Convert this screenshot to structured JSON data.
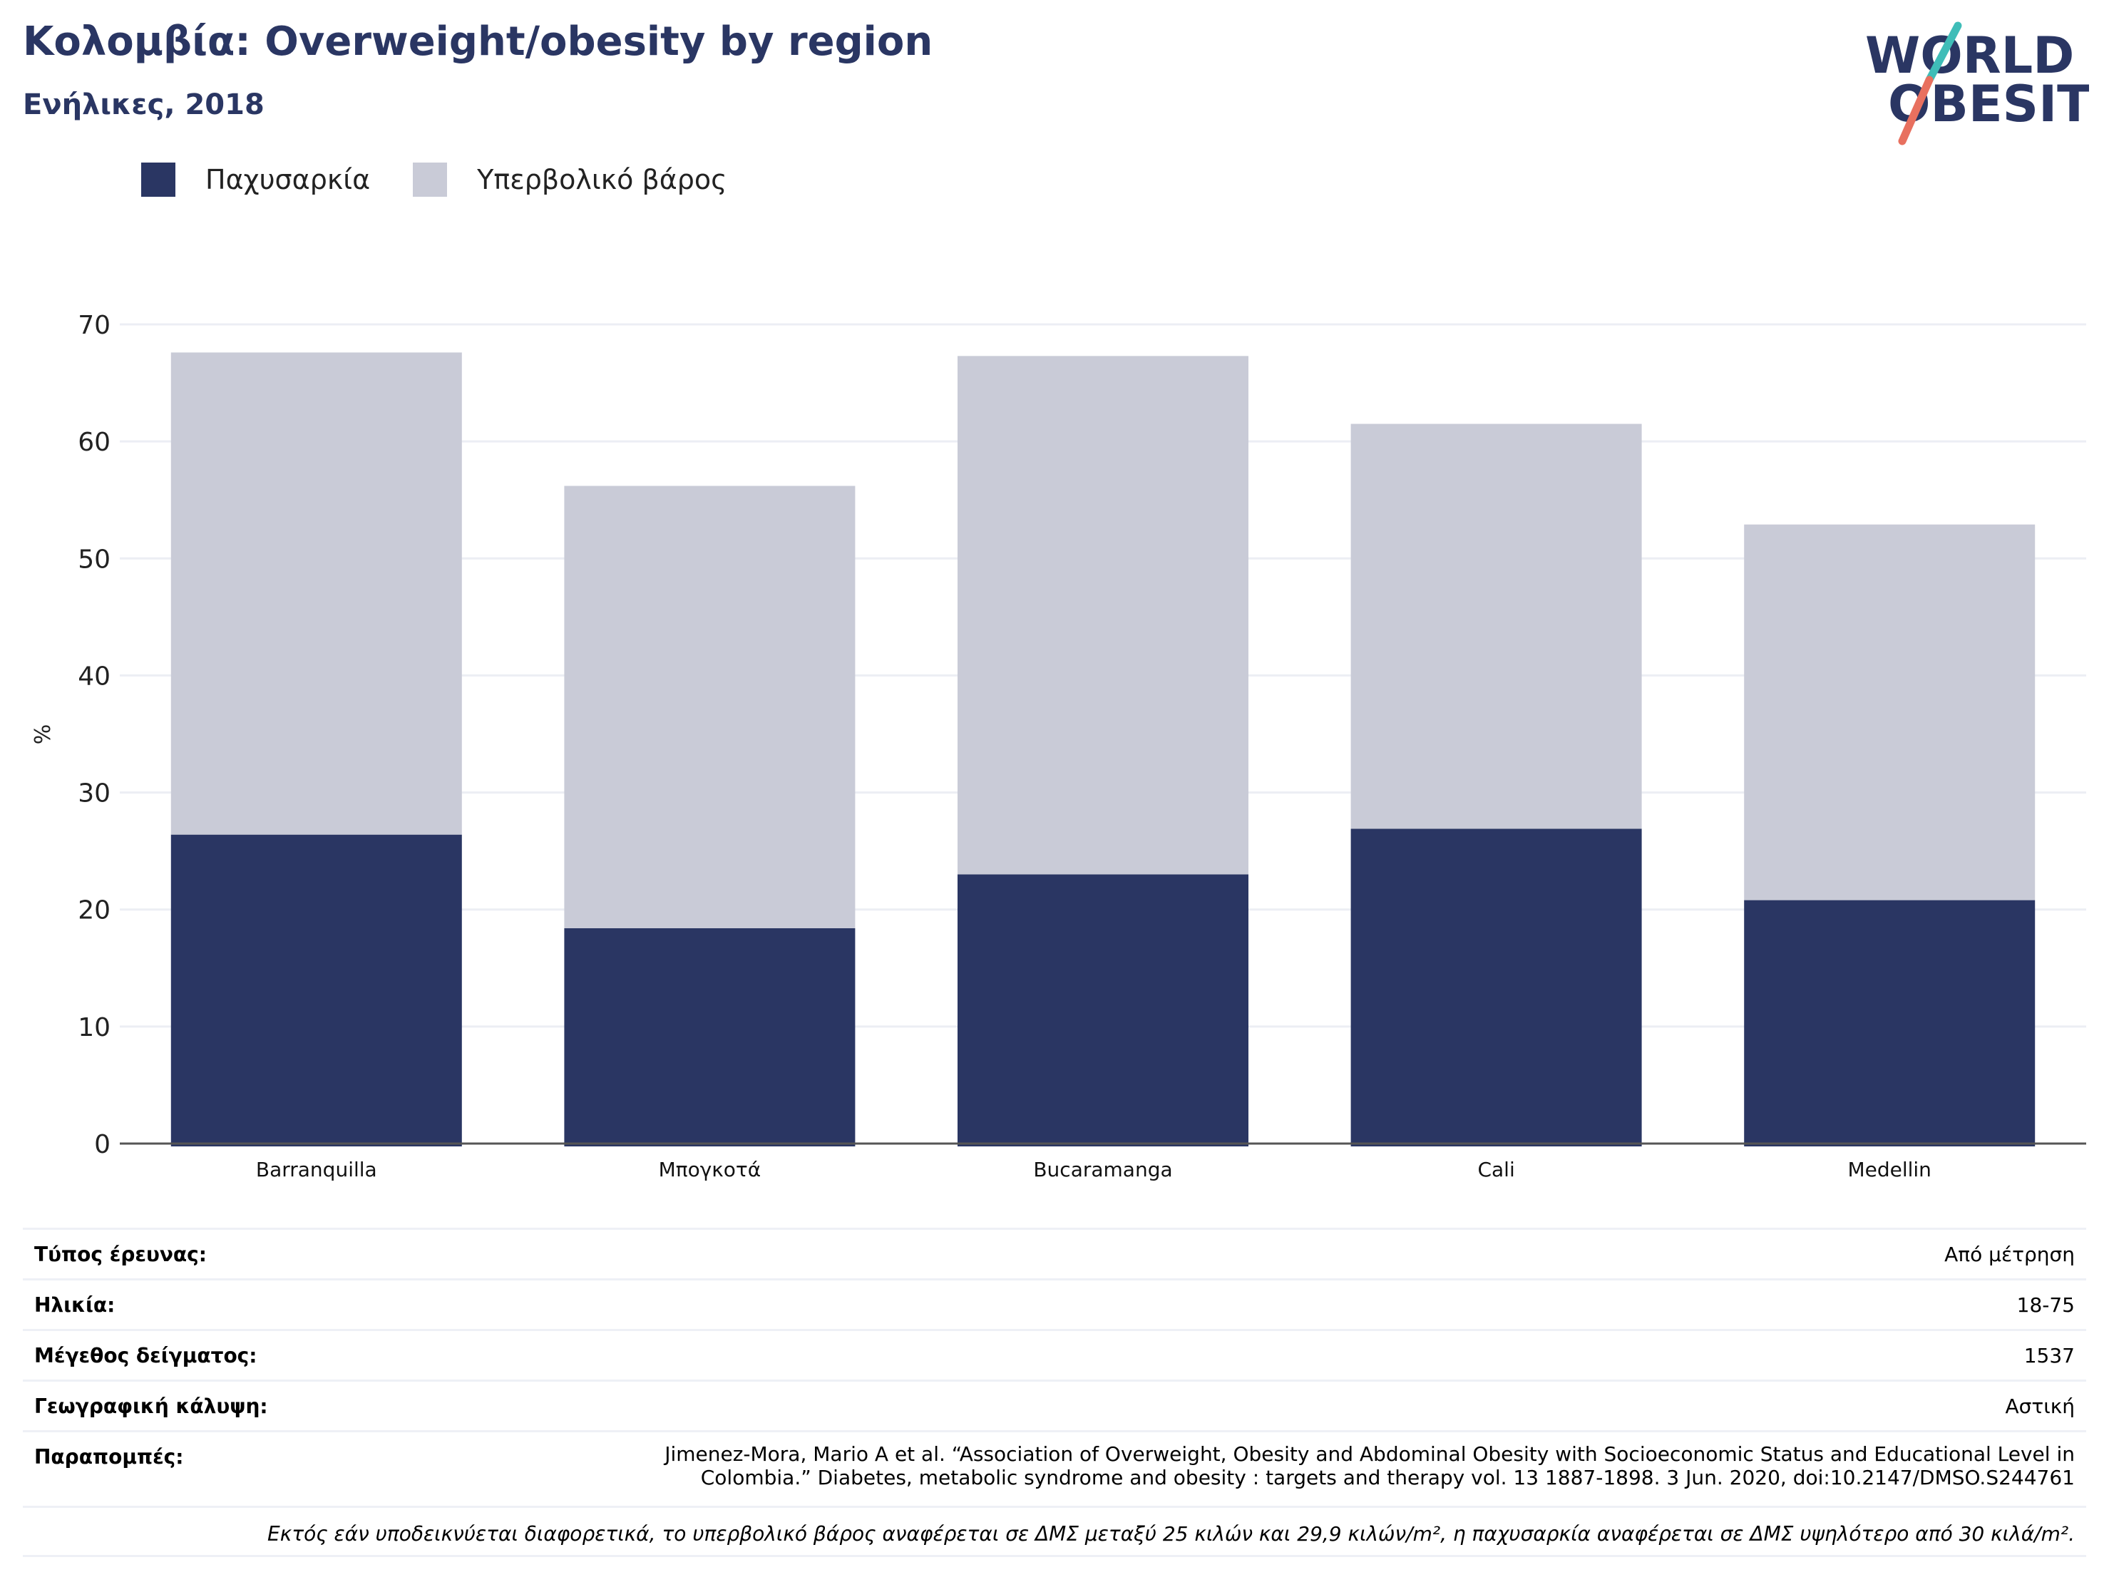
{
  "header": {
    "title": "Κολομβία: Overweight/obesity by region",
    "subtitle": "Ενήλικες, 2018"
  },
  "logo": {
    "line1": "WORLD",
    "line2": "OBESITY"
  },
  "colors": {
    "brand": "#2a3663",
    "obesity": "#2a3663",
    "overweight": "#c9cbd7",
    "logo_teal": "#3fbdb8",
    "logo_coral": "#e8705f",
    "grid": "#eceef4"
  },
  "chart_data": {
    "type": "bar",
    "stacked": true,
    "categories": [
      "Barranquilla",
      "Μπογκοτά",
      "Bucaramanga",
      "Cali",
      "Medellin"
    ],
    "series": [
      {
        "name": "Παχυσαρκία",
        "values": [
          26.4,
          18.4,
          23.0,
          26.9,
          20.8
        ]
      },
      {
        "name": "Υπερβολικό βάρος",
        "values": [
          41.2,
          37.8,
          44.3,
          34.6,
          32.1
        ]
      }
    ],
    "ylabel": "%",
    "xlabel": "",
    "ylim": [
      0,
      70
    ],
    "yticks": [
      0,
      10,
      20,
      30,
      40,
      50,
      60,
      70
    ],
    "grid": true,
    "legend_position": "top-left"
  },
  "info": {
    "rows": [
      {
        "label": "Τύπος έρευνας:",
        "value": "Από μέτρηση"
      },
      {
        "label": "Ηλικία:",
        "value": "18-75"
      },
      {
        "label": "Μέγεθος δείγματος:",
        "value": "1537"
      },
      {
        "label": "Γεωγραφική κάλυψη:",
        "value": "Αστική"
      },
      {
        "label": "Παραπομπές:",
        "value": "Jimenez-Mora, Mario A et al. “Association of Overweight, Obesity and Abdominal Obesity with Socioeconomic Status and Educational Level in Colombia.” Diabetes, metabolic syndrome and obesity : targets and therapy vol. 13 1887-1898. 3 Jun. 2020, doi:10.2147/DMSO.S244761"
      }
    ],
    "footnote": "Εκτός εάν υποδεικνύεται διαφορετικά, το υπερβολικό βάρος αναφέρεται σε ΔΜΣ μεταξύ 25 κιλών και 29,9 κιλών/m², η παχυσαρκία αναφέρεται σε ΔΜΣ υψηλότερο από 30 κιλά/m²."
  }
}
